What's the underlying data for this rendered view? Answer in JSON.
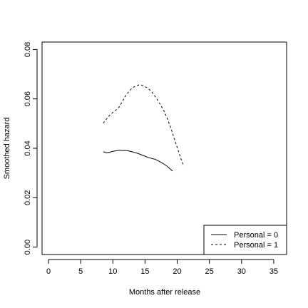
{
  "chart_data": {
    "type": "line",
    "title": "",
    "xlabel": "Months after release",
    "ylabel": "Smoothed hazard",
    "xlim": [
      -1,
      37
    ],
    "ylim": [
      -0.003,
      0.083
    ],
    "xticks": [
      0,
      5,
      10,
      15,
      20,
      25,
      30,
      35
    ],
    "yticks": [
      0.0,
      0.02,
      0.04,
      0.06,
      0.08
    ],
    "ytick_labels": [
      "0.00",
      "0.02",
      "0.04",
      "0.06",
      "0.08"
    ],
    "grid": false,
    "legend": {
      "placement": "bottom-right",
      "entries": [
        {
          "label": "Personal = 0",
          "linestyle": "solid"
        },
        {
          "label": "Personal = 1",
          "linestyle": "dashed"
        }
      ]
    },
    "series": [
      {
        "name": "Personal = 0",
        "linestyle": "solid",
        "color": "#000000",
        "x": [
          8.5,
          9.0,
          9.5,
          10.0,
          10.5,
          11.0,
          11.5,
          12.0,
          12.5,
          13.0,
          13.5,
          14.0,
          14.5,
          15.0,
          15.5,
          16.0,
          16.5,
          17.0,
          17.5,
          18.0,
          18.5,
          19.0,
          19.3
        ],
        "y": [
          0.0386,
          0.0382,
          0.0384,
          0.0388,
          0.039,
          0.0392,
          0.0391,
          0.0391,
          0.0389,
          0.0386,
          0.0382,
          0.0378,
          0.0373,
          0.0368,
          0.0363,
          0.0359,
          0.0356,
          0.035,
          0.0343,
          0.0335,
          0.0326,
          0.0314,
          0.0308
        ]
      },
      {
        "name": "Personal = 1",
        "linestyle": "dashed",
        "color": "#000000",
        "x": [
          8.5,
          9.0,
          9.5,
          10.0,
          10.5,
          11.0,
          11.5,
          12.0,
          12.5,
          13.0,
          13.5,
          14.0,
          14.5,
          15.0,
          15.5,
          16.0,
          16.5,
          17.0,
          17.5,
          18.0,
          18.5,
          19.0,
          19.5,
          20.0,
          20.5,
          21.0
        ],
        "y": [
          0.0502,
          0.0518,
          0.0534,
          0.0545,
          0.0555,
          0.0568,
          0.059,
          0.0613,
          0.063,
          0.0644,
          0.0652,
          0.0656,
          0.0655,
          0.065,
          0.0642,
          0.063,
          0.0612,
          0.0593,
          0.0572,
          0.0548,
          0.0518,
          0.0483,
          0.0443,
          0.0403,
          0.0364,
          0.0327
        ]
      }
    ]
  }
}
